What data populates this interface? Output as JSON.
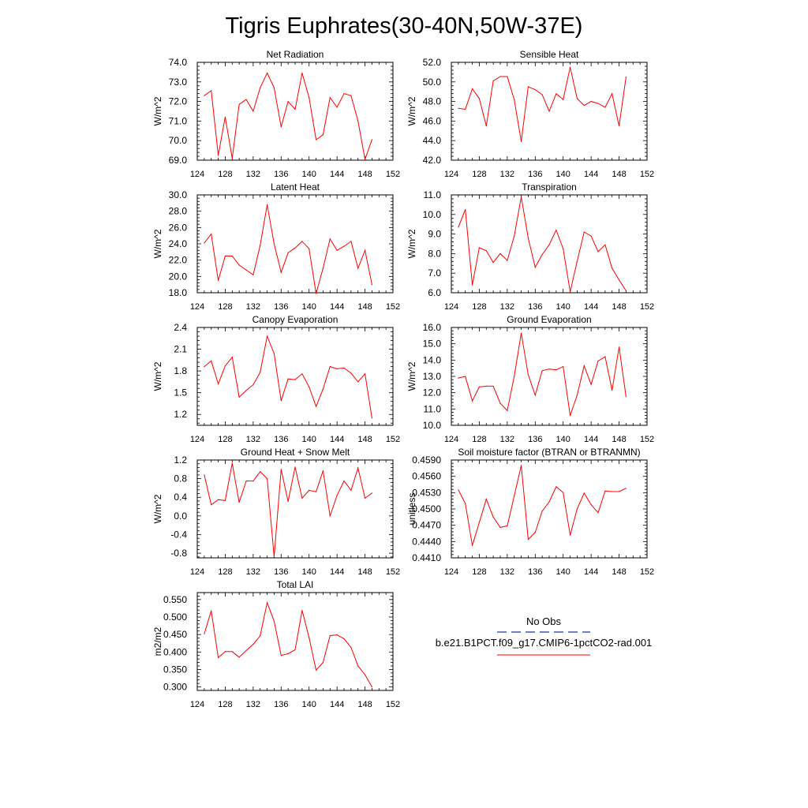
{
  "page_title": "Tigris Euphrates(30-40N,50W-37E)",
  "legend": {
    "obs_label": "No Obs",
    "obs_color": "#2233aa",
    "model_label": "b.e21.B1PCT.f09_g17.CMIP6-1pctCO2-rad.001",
    "model_color": "#ff0000"
  },
  "chart_data": [
    {
      "type": "line",
      "title": "Net Radiation",
      "xlabel": "",
      "ylabel": "W/m^2",
      "xlim": [
        124,
        152
      ],
      "ylim": [
        69.0,
        74.0
      ],
      "xticks": [
        "124",
        "128",
        "132",
        "136",
        "140",
        "144",
        "148",
        "152"
      ],
      "yticks": [
        "69.0",
        "70.0",
        "71.0",
        "72.0",
        "73.0",
        "74.0"
      ],
      "series": [
        {
          "x": [
            125,
            126,
            127,
            128,
            129,
            130,
            131,
            132,
            133,
            134,
            135,
            136,
            137,
            138,
            139,
            140,
            141,
            142,
            143,
            144,
            145,
            146,
            147,
            148,
            149
          ],
          "values": [
            72.3,
            72.55,
            69.25,
            71.2,
            69.1,
            71.85,
            72.1,
            71.5,
            72.7,
            73.45,
            72.7,
            70.7,
            72.0,
            71.6,
            73.45,
            72.2,
            70.05,
            70.3,
            72.2,
            71.7,
            72.4,
            72.3,
            71.0,
            69.05,
            70.05
          ]
        }
      ]
    },
    {
      "type": "line",
      "title": "Sensible Heat",
      "xlabel": "",
      "ylabel": "W/m^2",
      "xlim": [
        124,
        152
      ],
      "ylim": [
        42.0,
        52.0
      ],
      "xticks": [
        "124",
        "128",
        "132",
        "136",
        "140",
        "144",
        "148",
        "152"
      ],
      "yticks": [
        "42.0",
        "44.0",
        "46.0",
        "48.0",
        "50.0",
        "52.0"
      ],
      "series": [
        {
          "x": [
            125,
            126,
            127,
            128,
            129,
            130,
            131,
            132,
            133,
            134,
            135,
            136,
            137,
            138,
            139,
            140,
            141,
            142,
            143,
            144,
            145,
            146,
            147,
            148,
            149
          ],
          "values": [
            47.3,
            47.2,
            49.3,
            48.3,
            45.5,
            50.1,
            50.55,
            50.55,
            48.2,
            43.9,
            49.5,
            49.2,
            48.7,
            47.0,
            48.8,
            48.2,
            51.5,
            48.3,
            47.6,
            48.0,
            47.8,
            47.4,
            48.8,
            45.5,
            50.5
          ]
        }
      ]
    },
    {
      "type": "line",
      "title": "Latent Heat",
      "xlabel": "",
      "ylabel": "W/m^2",
      "xlim": [
        124,
        152
      ],
      "ylim": [
        18.0,
        30.0
      ],
      "xticks": [
        "124",
        "128",
        "132",
        "136",
        "140",
        "144",
        "148",
        "152"
      ],
      "yticks": [
        "18.0",
        "20.0",
        "22.0",
        "24.0",
        "26.0",
        "28.0",
        "30.0"
      ],
      "series": [
        {
          "x": [
            125,
            126,
            127,
            128,
            129,
            130,
            131,
            132,
            133,
            134,
            135,
            136,
            137,
            138,
            139,
            140,
            141,
            142,
            143,
            144,
            145,
            146,
            147,
            148,
            149
          ],
          "values": [
            24.1,
            25.2,
            19.5,
            22.5,
            22.5,
            21.4,
            20.8,
            20.2,
            23.8,
            28.8,
            24.0,
            20.5,
            22.9,
            23.5,
            24.3,
            23.4,
            17.9,
            21.0,
            24.6,
            23.2,
            23.7,
            24.3,
            21.0,
            23.2,
            19.0
          ]
        }
      ]
    },
    {
      "type": "line",
      "title": "Transpiration",
      "xlabel": "",
      "ylabel": "W/m^2",
      "xlim": [
        124,
        152
      ],
      "ylim": [
        6.0,
        11.0
      ],
      "xticks": [
        "124",
        "128",
        "132",
        "136",
        "140",
        "144",
        "148",
        "152"
      ],
      "yticks": [
        "6.0",
        "7.0",
        "8.0",
        "9.0",
        "10.0",
        "11.0"
      ],
      "series": [
        {
          "x": [
            125,
            126,
            127,
            128,
            129,
            130,
            131,
            132,
            133,
            134,
            135,
            136,
            137,
            138,
            139,
            140,
            141,
            142,
            143,
            144,
            145,
            146,
            147,
            148,
            149
          ],
          "values": [
            9.35,
            10.25,
            6.4,
            8.3,
            8.15,
            7.55,
            8.0,
            7.65,
            8.9,
            10.9,
            8.8,
            7.3,
            7.95,
            8.45,
            9.2,
            8.25,
            6.05,
            7.6,
            9.1,
            8.9,
            8.1,
            8.45,
            7.25,
            6.65,
            6.1
          ]
        }
      ]
    },
    {
      "type": "line",
      "title": "Canopy Evaporation",
      "xlabel": "",
      "ylabel": "W/m^2",
      "xlim": [
        124,
        152
      ],
      "ylim": [
        1.05,
        2.4
      ],
      "xticks": [
        "124",
        "128",
        "132",
        "136",
        "140",
        "144",
        "148",
        "152"
      ],
      "yticks": [
        "1.2",
        "1.5",
        "1.8",
        "2.1",
        "2.4"
      ],
      "series": [
        {
          "x": [
            125,
            126,
            127,
            128,
            129,
            130,
            131,
            132,
            133,
            134,
            135,
            136,
            137,
            138,
            139,
            140,
            141,
            142,
            143,
            144,
            145,
            146,
            147,
            148,
            149
          ],
          "values": [
            1.86,
            1.94,
            1.62,
            1.87,
            1.99,
            1.44,
            1.53,
            1.61,
            1.78,
            2.28,
            2.04,
            1.39,
            1.69,
            1.68,
            1.76,
            1.58,
            1.31,
            1.55,
            1.86,
            1.83,
            1.84,
            1.77,
            1.65,
            1.76,
            1.15
          ]
        }
      ]
    },
    {
      "type": "line",
      "title": "Ground Evaporation",
      "xlabel": "",
      "ylabel": "W/m^2",
      "xlim": [
        124,
        152
      ],
      "ylim": [
        10.0,
        16.0
      ],
      "xticks": [
        "124",
        "128",
        "132",
        "136",
        "140",
        "144",
        "148",
        "152"
      ],
      "yticks": [
        "10.0",
        "11.0",
        "12.0",
        "13.0",
        "14.0",
        "15.0",
        "16.0"
      ],
      "series": [
        {
          "x": [
            125,
            126,
            127,
            128,
            129,
            130,
            131,
            132,
            133,
            134,
            135,
            136,
            137,
            138,
            139,
            140,
            141,
            142,
            143,
            144,
            145,
            146,
            147,
            148,
            149
          ],
          "values": [
            12.9,
            13.0,
            11.5,
            12.35,
            12.4,
            12.4,
            11.35,
            10.9,
            13.0,
            15.65,
            13.1,
            11.85,
            13.35,
            13.45,
            13.4,
            13.6,
            10.6,
            11.85,
            13.65,
            12.5,
            13.95,
            14.2,
            12.15,
            14.8,
            11.75
          ]
        }
      ]
    },
    {
      "type": "line",
      "title": "Ground Heat + Snow Melt",
      "xlabel": "",
      "ylabel": "W/m^2",
      "xlim": [
        124,
        152
      ],
      "ylim": [
        -0.9,
        1.2
      ],
      "xticks": [
        "124",
        "128",
        "132",
        "136",
        "140",
        "144",
        "148",
        "152"
      ],
      "yticks": [
        "-0.8",
        "-0.4",
        "0.0",
        "0.4",
        "0.8",
        "1.2"
      ],
      "series": [
        {
          "x": [
            125,
            126,
            127,
            128,
            129,
            130,
            131,
            132,
            133,
            134,
            135,
            136,
            137,
            138,
            139,
            140,
            141,
            142,
            143,
            144,
            145,
            146,
            147,
            148,
            149
          ],
          "values": [
            0.88,
            0.24,
            0.35,
            0.33,
            1.13,
            0.29,
            0.75,
            0.75,
            0.95,
            0.8,
            -0.88,
            1.0,
            0.31,
            1.05,
            0.38,
            0.55,
            0.52,
            0.97,
            0.0,
            0.44,
            0.75,
            0.55,
            1.03,
            0.38,
            0.49
          ]
        }
      ]
    },
    {
      "type": "line",
      "title": "Soil moisture factor (BTRAN or BTRANMN)",
      "xlabel": "",
      "ylabel": "unitless",
      "xlim": [
        124,
        152
      ],
      "ylim": [
        0.441,
        0.459
      ],
      "xticks": [
        "124",
        "128",
        "132",
        "136",
        "140",
        "144",
        "148",
        "152"
      ],
      "yticks": [
        "0.4410",
        "0.4440",
        "0.4470",
        "0.4500",
        "0.4530",
        "0.4560",
        "0.4590"
      ],
      "series": [
        {
          "x": [
            125,
            126,
            127,
            128,
            129,
            130,
            131,
            132,
            133,
            134,
            135,
            136,
            137,
            138,
            139,
            140,
            141,
            142,
            143,
            144,
            145,
            146,
            147,
            148,
            149
          ],
          "values": [
            0.4535,
            0.451,
            0.4433,
            0.4475,
            0.4518,
            0.4485,
            0.4466,
            0.4469,
            0.4524,
            0.458,
            0.4444,
            0.4457,
            0.4496,
            0.4513,
            0.4541,
            0.453,
            0.4452,
            0.45,
            0.4529,
            0.4508,
            0.4493,
            0.4533,
            0.4532,
            0.4532,
            0.4538
          ]
        }
      ]
    },
    {
      "type": "line",
      "title": "Total LAI",
      "xlabel": "",
      "ylabel": "m2/m2",
      "xlim": [
        124,
        152
      ],
      "ylim": [
        0.29,
        0.57
      ],
      "xticks": [
        "124",
        "128",
        "132",
        "136",
        "140",
        "144",
        "148",
        "152"
      ],
      "yticks": [
        "0.300",
        "0.350",
        "0.400",
        "0.450",
        "0.500",
        "0.550"
      ],
      "series": [
        {
          "x": [
            125,
            126,
            127,
            128,
            129,
            130,
            131,
            132,
            133,
            134,
            135,
            136,
            137,
            138,
            139,
            140,
            141,
            142,
            143,
            144,
            145,
            146,
            147,
            148,
            149
          ],
          "values": [
            0.452,
            0.518,
            0.384,
            0.401,
            0.401,
            0.385,
            0.404,
            0.422,
            0.446,
            0.541,
            0.488,
            0.39,
            0.395,
            0.406,
            0.519,
            0.441,
            0.348,
            0.37,
            0.447,
            0.449,
            0.438,
            0.413,
            0.36,
            0.335,
            0.3
          ]
        }
      ]
    }
  ]
}
